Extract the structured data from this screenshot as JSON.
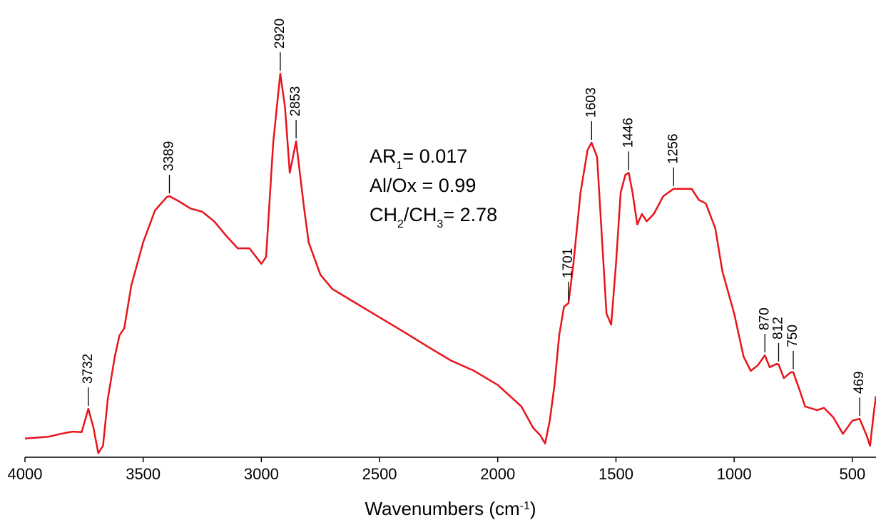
{
  "chart_data": {
    "type": "line",
    "xlabel": [
      "Wavenumbers (cm",
      "-1",
      ")"
    ],
    "xlim": [
      4000,
      400
    ],
    "xticks": [
      4000,
      3500,
      3000,
      2500,
      2000,
      1500,
      1000,
      500
    ],
    "ylim": [
      0,
      100
    ],
    "series": [
      {
        "color": "#e8141b",
        "x": [
          4000,
          3900,
          3850,
          3800,
          3760,
          3732,
          3710,
          3690,
          3670,
          3650,
          3620,
          3600,
          3580,
          3550,
          3500,
          3450,
          3400,
          3389,
          3350,
          3300,
          3250,
          3200,
          3150,
          3100,
          3050,
          3000,
          2980,
          2950,
          2920,
          2900,
          2880,
          2853,
          2820,
          2800,
          2750,
          2700,
          2600,
          2500,
          2400,
          2300,
          2200,
          2100,
          2000,
          1900,
          1850,
          1820,
          1800,
          1780,
          1760,
          1740,
          1720,
          1701,
          1680,
          1650,
          1620,
          1603,
          1580,
          1560,
          1540,
          1520,
          1500,
          1480,
          1460,
          1446,
          1430,
          1410,
          1390,
          1370,
          1340,
          1300,
          1256,
          1200,
          1180,
          1150,
          1120,
          1080,
          1050,
          1000,
          960,
          930,
          900,
          870,
          850,
          820,
          812,
          790,
          760,
          750,
          720,
          700,
          650,
          620,
          580,
          540,
          500,
          469,
          440,
          425,
          410,
          400
        ],
        "values": [
          4.1,
          4.5,
          5.1,
          5.6,
          5.5,
          10.6,
          6.4,
          0.9,
          2.5,
          12.6,
          22.0,
          26.7,
          28.2,
          37.6,
          47.0,
          54.0,
          56.9,
          57.1,
          56.0,
          54.4,
          53.7,
          51.6,
          48.5,
          45.7,
          45.7,
          42.3,
          43.8,
          68.8,
          83.9,
          76.6,
          62.2,
          69.1,
          54.8,
          47.0,
          39.9,
          36.8,
          33.7,
          30.6,
          27.5,
          24.3,
          21.2,
          18.9,
          15.8,
          11.1,
          6.4,
          4.8,
          3.0,
          8.0,
          15.8,
          26.7,
          32.9,
          33.7,
          42.3,
          57.9,
          67.2,
          68.8,
          65.7,
          48.5,
          31.4,
          29.0,
          42.3,
          57.9,
          61.8,
          62.2,
          57.9,
          50.9,
          53.2,
          51.6,
          53.2,
          57.1,
          58.7,
          58.7,
          58.7,
          56.3,
          55.5,
          50.1,
          40.7,
          31.4,
          22.0,
          18.9,
          20.1,
          22.3,
          19.7,
          20.4,
          20.3,
          17.3,
          18.6,
          18.6,
          14.2,
          11.1,
          10.3,
          10.8,
          8.7,
          5.1,
          8.0,
          8.4,
          4.8,
          2.5,
          9.5,
          13.4
        ]
      }
    ],
    "peaks": [
      3732,
      3389,
      2920,
      2853,
      1701,
      1603,
      1446,
      1256,
      870,
      812,
      750,
      469
    ],
    "stats": [
      [
        "AR",
        "1",
        "= 0.017"
      ],
      [
        "Al/Ox = 0.99"
      ],
      [
        "CH",
        "2",
        "/CH",
        "3",
        "= 2.78"
      ]
    ]
  }
}
